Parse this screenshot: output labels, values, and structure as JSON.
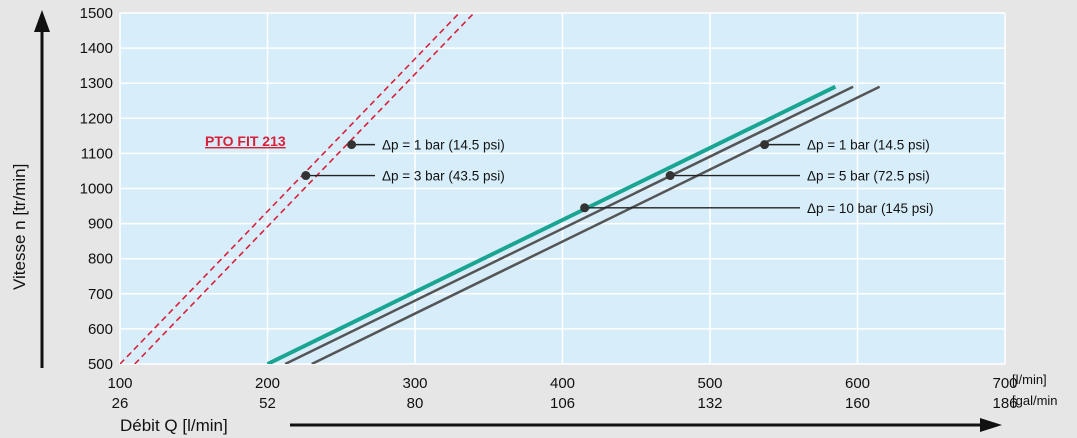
{
  "chart_data": {
    "type": "line",
    "title": "",
    "ylabel": "Vitesse n [tr/min]",
    "xlabel": "Débit Q [l/min]",
    "xlim": [
      100,
      700
    ],
    "ylim": [
      500,
      1500
    ],
    "grid": true,
    "background_color": "#d7eefa",
    "x_ticks": [
      100,
      200,
      300,
      400,
      500,
      600,
      700
    ],
    "x_ticks_gal": [
      "26",
      "52",
      "80",
      "106",
      "132",
      "160",
      "186"
    ],
    "x_unit_primary": "[l/min]",
    "x_unit_secondary": "[gal/min",
    "y_ticks": [
      500,
      600,
      700,
      800,
      900,
      1000,
      1100,
      1200,
      1300,
      1400,
      1500
    ],
    "pto_label": "PTO FIT 213",
    "pto_label_color": "#d8203a",
    "series": [
      {
        "style": "dashed",
        "color": "#d8203a",
        "x": [
          100,
          330
        ],
        "y": [
          500,
          1500
        ]
      },
      {
        "style": "dashed",
        "color": "#d8203a",
        "x": [
          110,
          340
        ],
        "y": [
          500,
          1500
        ]
      },
      {
        "style": "solid",
        "color": "#19a592",
        "x": [
          200,
          585
        ],
        "y": [
          500,
          1290
        ]
      },
      {
        "style": "solid",
        "color": "#555555",
        "x": [
          212,
          597
        ],
        "y": [
          500,
          1290
        ]
      },
      {
        "style": "solid",
        "color": "#555555",
        "x": [
          230,
          615
        ],
        "y": [
          500,
          1290
        ]
      }
    ],
    "annotations": [
      {
        "text": "Δp = 1 bar (14.5 psi)",
        "point": [
          257,
          1125
        ],
        "color": "#111111"
      },
      {
        "text": "Δp = 3 bar (43.5 psi)",
        "point": [
          226,
          1037
        ],
        "color": "#111111"
      },
      {
        "text": "Δp = 1 bar (14.5 psi)",
        "point": [
          537,
          1125
        ],
        "color": "#111111"
      },
      {
        "text": "Δp = 5 bar (72.5 psi)",
        "point": [
          473,
          1037
        ],
        "color": "#111111"
      },
      {
        "text": "Δp = 10 bar (145 psi)",
        "point": [
          415,
          945
        ],
        "color": "#19a592"
      }
    ]
  }
}
